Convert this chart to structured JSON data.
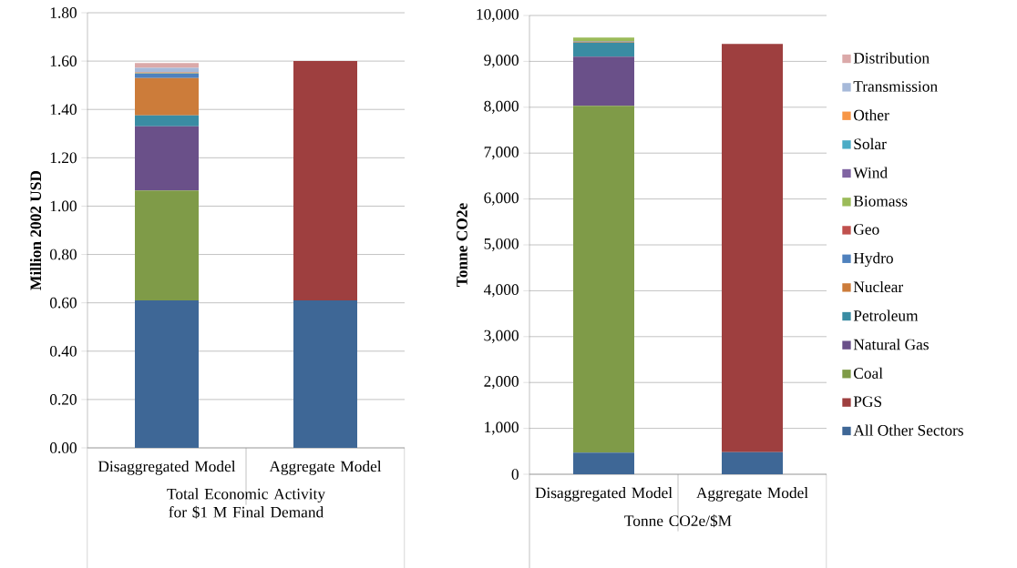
{
  "chart_data": [
    {
      "type": "bar",
      "stacked": true,
      "ylabel": "Million 2002 USD",
      "xlabel": "Total Economic Activity for $1 M Final Demand",
      "categories": [
        "Disaggregated Model",
        "Aggregate Model"
      ],
      "ylim": [
        0,
        1.8
      ],
      "yticks": [
        {
          "value": 0,
          "label": "0.00"
        },
        {
          "value": 0.2,
          "label": "0.20"
        },
        {
          "value": 0.4,
          "label": "0.40"
        },
        {
          "value": 0.6,
          "label": "0.60"
        },
        {
          "value": 0.8,
          "label": "0.80"
        },
        {
          "value": 1.0,
          "label": "1.00"
        },
        {
          "value": 1.2,
          "label": "1.20"
        },
        {
          "value": 1.4,
          "label": "1.40"
        },
        {
          "value": 1.6,
          "label": "1.60"
        },
        {
          "value": 1.8,
          "label": "1.80"
        }
      ],
      "grid": "y",
      "legend": false,
      "series": [
        {
          "color": "#3e6796",
          "values": [
            0.61,
            0.61
          ]
        },
        {
          "color": "#9e3f3f",
          "values": [
            0,
            0.99
          ]
        },
        {
          "color": "#7f9b48",
          "values": [
            0.455,
            0
          ]
        },
        {
          "color": "#6a5089",
          "values": [
            0.265,
            0
          ]
        },
        {
          "color": "#3a8ca3",
          "values": [
            0.045,
            0
          ]
        },
        {
          "color": "#cc7c3a",
          "values": [
            0.155,
            0
          ]
        },
        {
          "color": "#4f81bd",
          "values": [
            0.018,
            0
          ]
        },
        {
          "color": "#c0504d",
          "values": [
            0,
            0
          ]
        },
        {
          "color": "#9bbb59",
          "values": [
            0.002,
            0
          ]
        },
        {
          "color": "#8064a2",
          "values": [
            0.002,
            0
          ]
        },
        {
          "color": "#4bacc6",
          "values": [
            null,
            0
          ]
        },
        {
          "color": "#f79646",
          "values": [
            0.002,
            0
          ]
        },
        {
          "color": "#a6b9d9",
          "values": [
            0.018,
            0
          ]
        },
        {
          "color": "#dba9a9",
          "values": [
            0.02,
            0
          ]
        }
      ]
    },
    {
      "type": "bar",
      "stacked": true,
      "ylabel": "Tonne CO2e",
      "xlabel": "Tonne CO2e/$M",
      "categories": [
        "Disaggregated Model",
        "Aggregate Model"
      ],
      "ylim": [
        0,
        10000
      ],
      "yticks": [
        0,
        {
          "value": 1000,
          "label": "1,000"
        },
        {
          "value": 2000,
          "label": "2,000"
        },
        {
          "value": 3000,
          "label": "3,000"
        },
        {
          "value": 4000,
          "label": "4,000"
        },
        {
          "value": 5000,
          "label": "5,000"
        },
        {
          "value": 6000,
          "label": "6,000"
        },
        {
          "value": 7000,
          "label": "7,000"
        },
        {
          "value": 8000,
          "label": "8,000"
        },
        {
          "value": 9000,
          "label": "9,000"
        },
        {
          "value": 10000,
          "label": "10,000"
        }
      ],
      "grid": "y",
      "legend": "right",
      "series": [
        {
          "name": "All Other Sectors",
          "color": "#3e6796",
          "values": [
            470,
            480
          ]
        },
        {
          "name": "PGS",
          "color": "#9e3f3f",
          "values": [
            0,
            8900
          ]
        },
        {
          "name": "Coal",
          "color": "#7f9b48",
          "values": [
            7560,
            0
          ]
        },
        {
          "name": "Natural Gas",
          "color": "#6a5089",
          "values": [
            1070,
            0
          ]
        },
        {
          "name": "Petroleum",
          "color": "#3a8ca3",
          "values": [
            310,
            0
          ]
        },
        {
          "name": "Nuclear",
          "color": "#cc7c3a",
          "values": [
            20,
            0
          ]
        },
        {
          "name": "Hydro",
          "color": "#4f81bd",
          "values": [
            10,
            0
          ]
        },
        {
          "name": "Geo",
          "color": "#c0504d",
          "values": [
            0,
            0
          ]
        },
        {
          "name": "Biomass",
          "color": "#9bbb59",
          "values": [
            80,
            0
          ]
        },
        {
          "name": "Wind",
          "color": "#8064a2",
          "values": [
            0,
            0
          ]
        },
        {
          "name": "Solar",
          "color": "#4bacc6",
          "values": [
            0,
            0
          ]
        },
        {
          "name": "Other",
          "color": "#f79646",
          "values": [
            0,
            0
          ]
        },
        {
          "name": "Transmission",
          "color": "#a6b9d9",
          "values": [
            0,
            0
          ]
        },
        {
          "name": "Distribution",
          "color": "#dba9a9",
          "values": [
            0,
            0
          ]
        }
      ]
    }
  ]
}
